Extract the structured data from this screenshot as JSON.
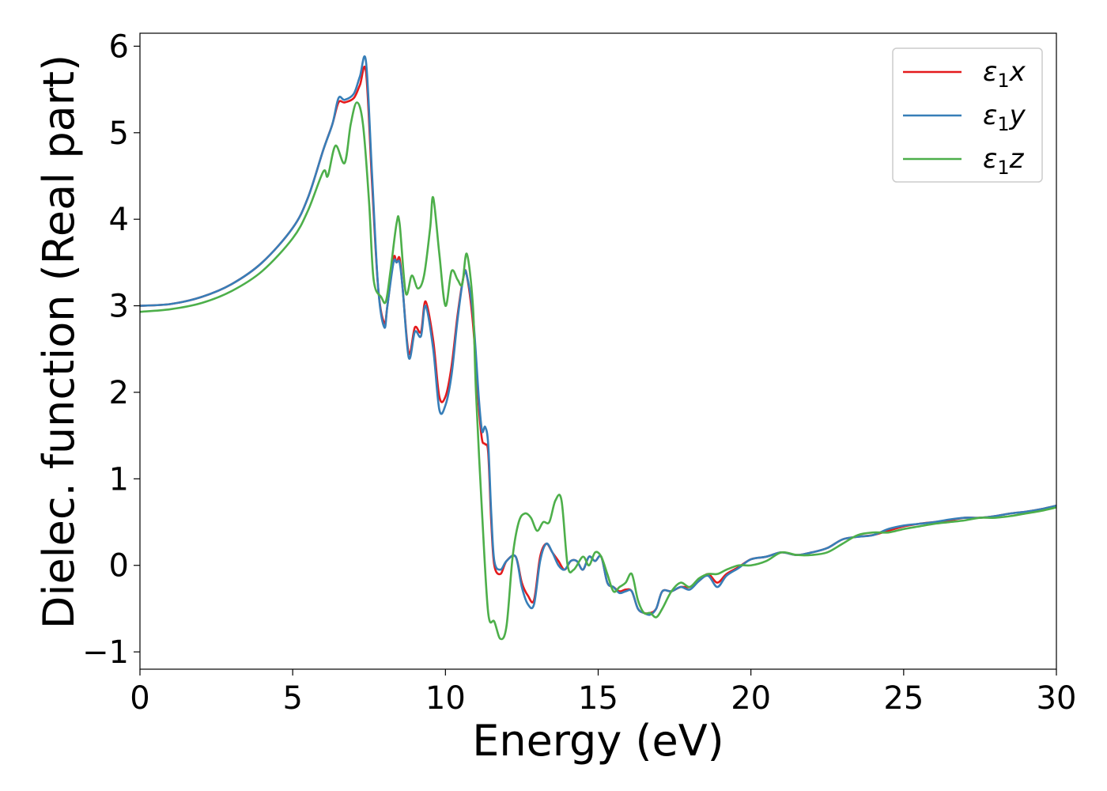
{
  "chart_data": {
    "type": "line",
    "title": "",
    "xlabel": "Energy (eV)",
    "ylabel": "Dielec. function (Real part)",
    "xlim": [
      0,
      30
    ],
    "ylim": [
      -1.2,
      6.15
    ],
    "xticks": [
      0,
      5,
      10,
      15,
      20,
      25,
      30
    ],
    "xtick_labels": [
      "0",
      "5",
      "10",
      "15",
      "20",
      "25",
      "30"
    ],
    "yticks": [
      -1,
      0,
      1,
      2,
      3,
      4,
      5,
      6
    ],
    "ytick_labels": [
      "−1",
      "0",
      "1",
      "2",
      "3",
      "4",
      "5",
      "6"
    ],
    "grid": false,
    "legend_position": "top-right",
    "legend_symbol": "ε",
    "legend_subscript": "1",
    "series": [
      {
        "name": "ε1x",
        "legend_suffix": "x",
        "color": "#e41a1c",
        "x": [
          0,
          1,
          2,
          3,
          4,
          5,
          5.5,
          6,
          6.3,
          6.5,
          6.7,
          7.0,
          7.2,
          7.4,
          7.6,
          7.8,
          8.0,
          8.1,
          8.3,
          8.4,
          8.5,
          8.6,
          8.8,
          9.0,
          9.2,
          9.35,
          9.6,
          9.8,
          10.0,
          10.2,
          10.4,
          10.6,
          10.7,
          10.9,
          11.1,
          11.2,
          11.3,
          11.4,
          11.5,
          11.6,
          11.8,
          12.0,
          12.3,
          12.5,
          12.7,
          12.9,
          13.1,
          13.3,
          13.5,
          13.7,
          13.9,
          14.1,
          14.3,
          14.5,
          14.7,
          14.9,
          15.1,
          15.3,
          15.5,
          15.7,
          15.9,
          16.1,
          16.3,
          16.5,
          16.7,
          16.9,
          17.1,
          17.4,
          17.7,
          18.0,
          18.3,
          18.6,
          18.9,
          19.2,
          19.6,
          20.0,
          20.5,
          21.0,
          21.5,
          22.0,
          22.5,
          23.0,
          23.5,
          24.0,
          24.5,
          25.0,
          25.5,
          26.0,
          26.5,
          27.0,
          27.5,
          28.0,
          28.5,
          29.0,
          29.5,
          30.0
        ],
        "y": [
          3.0,
          3.02,
          3.1,
          3.25,
          3.5,
          3.9,
          4.25,
          4.8,
          5.1,
          5.35,
          5.35,
          5.4,
          5.55,
          5.7,
          4.4,
          3.2,
          2.8,
          3.0,
          3.55,
          3.5,
          3.55,
          3.2,
          2.45,
          2.75,
          2.7,
          3.05,
          2.6,
          1.95,
          1.95,
          2.3,
          2.9,
          3.35,
          3.35,
          2.8,
          1.8,
          1.45,
          1.4,
          1.3,
          0.5,
          0.0,
          -0.1,
          0.05,
          0.1,
          -0.2,
          -0.35,
          -0.4,
          0.1,
          0.25,
          0.15,
          0.05,
          -0.05,
          0.05,
          0.05,
          -0.05,
          0.1,
          0.05,
          0.1,
          -0.2,
          -0.25,
          -0.3,
          -0.28,
          -0.3,
          -0.5,
          -0.55,
          -0.55,
          -0.5,
          -0.3,
          -0.3,
          -0.25,
          -0.25,
          -0.18,
          -0.1,
          -0.2,
          -0.1,
          -0.02,
          0.07,
          0.1,
          0.15,
          0.12,
          0.15,
          0.2,
          0.3,
          0.33,
          0.35,
          0.4,
          0.45,
          0.48,
          0.5,
          0.52,
          0.55,
          0.55,
          0.57,
          0.6,
          0.62,
          0.65,
          0.69
        ]
      },
      {
        "name": "ε1y",
        "legend_suffix": "y",
        "color": "#377eb8",
        "x": [
          0,
          1,
          2,
          3,
          4,
          5,
          5.5,
          6,
          6.3,
          6.5,
          6.7,
          7.0,
          7.2,
          7.4,
          7.6,
          7.8,
          8.0,
          8.1,
          8.3,
          8.4,
          8.5,
          8.6,
          8.8,
          9.0,
          9.2,
          9.35,
          9.6,
          9.8,
          10.0,
          10.2,
          10.4,
          10.6,
          10.7,
          10.9,
          11.1,
          11.2,
          11.3,
          11.4,
          11.5,
          11.6,
          11.8,
          12.0,
          12.3,
          12.5,
          12.7,
          12.9,
          13.1,
          13.3,
          13.5,
          13.7,
          13.9,
          14.1,
          14.3,
          14.5,
          14.7,
          14.9,
          15.1,
          15.3,
          15.5,
          15.7,
          15.9,
          16.1,
          16.3,
          16.5,
          16.7,
          16.9,
          17.1,
          17.4,
          17.7,
          18.0,
          18.3,
          18.6,
          18.9,
          19.2,
          19.6,
          20.0,
          20.5,
          21.0,
          21.5,
          22.0,
          22.5,
          23.0,
          23.5,
          24.0,
          24.5,
          25.0,
          25.5,
          26.0,
          26.5,
          27.0,
          27.5,
          28.0,
          28.5,
          29.0,
          29.5,
          30.0
        ],
        "y": [
          3.0,
          3.02,
          3.1,
          3.25,
          3.5,
          3.9,
          4.25,
          4.8,
          5.1,
          5.4,
          5.38,
          5.45,
          5.65,
          5.82,
          4.5,
          3.2,
          2.75,
          3.0,
          3.5,
          3.5,
          3.5,
          3.2,
          2.4,
          2.7,
          2.65,
          3.0,
          2.5,
          1.8,
          1.85,
          2.2,
          2.85,
          3.35,
          3.35,
          2.9,
          1.9,
          1.55,
          1.6,
          1.4,
          0.6,
          0.05,
          -0.05,
          0.05,
          0.1,
          -0.25,
          -0.45,
          -0.45,
          0.05,
          0.25,
          0.15,
          0.0,
          -0.05,
          0.05,
          0.05,
          -0.05,
          0.1,
          0.05,
          0.1,
          -0.2,
          -0.25,
          -0.32,
          -0.3,
          -0.3,
          -0.5,
          -0.55,
          -0.57,
          -0.5,
          -0.3,
          -0.3,
          -0.25,
          -0.28,
          -0.18,
          -0.12,
          -0.25,
          -0.12,
          -0.03,
          0.07,
          0.1,
          0.15,
          0.12,
          0.15,
          0.2,
          0.3,
          0.33,
          0.35,
          0.42,
          0.46,
          0.48,
          0.5,
          0.53,
          0.55,
          0.55,
          0.57,
          0.6,
          0.62,
          0.65,
          0.69
        ]
      },
      {
        "name": "ε1z",
        "legend_suffix": "z",
        "color": "#4daf4a",
        "x": [
          0,
          1,
          2,
          3,
          4,
          5,
          5.5,
          6,
          6.15,
          6.4,
          6.7,
          6.9,
          7.1,
          7.3,
          7.5,
          7.65,
          7.9,
          8.05,
          8.2,
          8.4,
          8.5,
          8.7,
          8.9,
          9.1,
          9.3,
          9.5,
          9.6,
          9.8,
          10.0,
          10.2,
          10.4,
          10.55,
          10.7,
          10.9,
          11.0,
          11.2,
          11.4,
          11.6,
          11.8,
          12.0,
          12.2,
          12.4,
          12.6,
          12.8,
          13.0,
          13.2,
          13.4,
          13.6,
          13.8,
          14.0,
          14.2,
          14.5,
          14.7,
          14.9,
          15.1,
          15.3,
          15.5,
          15.7,
          15.9,
          16.1,
          16.3,
          16.5,
          16.7,
          16.9,
          17.1,
          17.4,
          17.7,
          18.0,
          18.3,
          18.6,
          18.9,
          19.2,
          19.6,
          20.0,
          20.5,
          21.0,
          21.5,
          22.0,
          22.5,
          23.0,
          23.5,
          24.0,
          24.5,
          25.0,
          25.5,
          26.0,
          26.5,
          27.0,
          27.5,
          28.0,
          28.5,
          29.0,
          29.5,
          30.0
        ],
        "y": [
          2.93,
          2.96,
          3.03,
          3.17,
          3.4,
          3.78,
          4.1,
          4.55,
          4.5,
          4.85,
          4.65,
          5.1,
          5.35,
          5.1,
          4.2,
          3.3,
          3.1,
          3.05,
          3.4,
          3.95,
          3.95,
          3.15,
          3.35,
          3.2,
          3.35,
          3.9,
          4.25,
          3.6,
          3.0,
          3.4,
          3.3,
          3.25,
          3.6,
          3.0,
          2.0,
          0.6,
          -0.55,
          -0.65,
          -0.85,
          -0.7,
          0.1,
          0.5,
          0.6,
          0.55,
          0.4,
          0.5,
          0.5,
          0.75,
          0.75,
          0.0,
          -0.05,
          0.1,
          0.0,
          0.15,
          0.1,
          -0.1,
          -0.3,
          -0.25,
          -0.2,
          -0.1,
          -0.4,
          -0.55,
          -0.55,
          -0.6,
          -0.5,
          -0.3,
          -0.2,
          -0.25,
          -0.15,
          -0.1,
          -0.1,
          -0.05,
          0.0,
          0.0,
          0.05,
          0.15,
          0.12,
          0.12,
          0.15,
          0.25,
          0.35,
          0.38,
          0.38,
          0.42,
          0.45,
          0.48,
          0.5,
          0.52,
          0.55,
          0.55,
          0.57,
          0.6,
          0.63,
          0.67
        ]
      }
    ]
  }
}
